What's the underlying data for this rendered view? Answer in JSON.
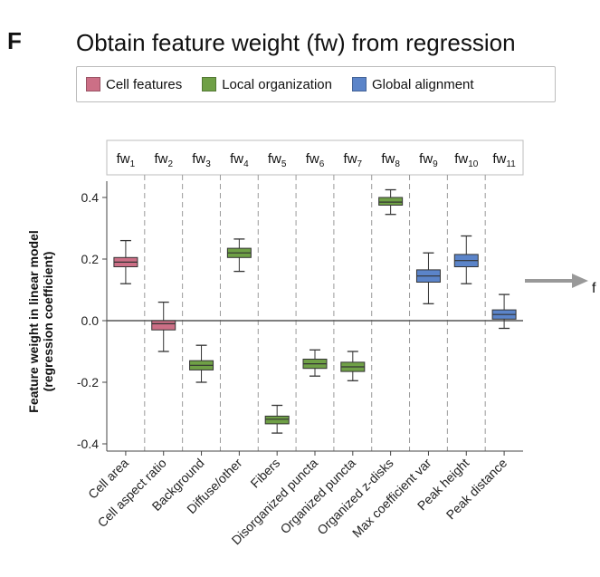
{
  "panel_letter": "F",
  "header_text": "f",
  "chart_data": {
    "type": "boxplot",
    "title": "Obtain feature weight (fw) from regression",
    "ylabel_line1": "Feature weight in linear model",
    "ylabel_line2": "(regression coefficient)",
    "ylim": [
      -0.42,
      0.46
    ],
    "yticks": [
      -0.4,
      -0.2,
      0.0,
      0.2,
      0.4
    ],
    "ytick_labels": [
      "-0.4",
      "-0.2",
      "0.0",
      "0.2",
      "0.4"
    ],
    "zero_line": true,
    "groups": [
      {
        "name": "Cell features",
        "color": "#cc6f86"
      },
      {
        "name": "Local organization",
        "color": "#6fa046"
      },
      {
        "name": "Global alignment",
        "color": "#5b84c9"
      }
    ],
    "categories": [
      {
        "label": "Cell area",
        "fw": "fw",
        "sub": "1",
        "group": 0,
        "min": 0.12,
        "q1": 0.175,
        "median": 0.19,
        "q3": 0.205,
        "max": 0.26
      },
      {
        "label": "Cell aspect ratio",
        "fw": "fw",
        "sub": "2",
        "group": 0,
        "min": -0.1,
        "q1": -0.03,
        "median": -0.01,
        "q3": 0.0,
        "max": 0.06
      },
      {
        "label": "Background",
        "fw": "fw",
        "sub": "3",
        "group": 1,
        "min": -0.2,
        "q1": -0.16,
        "median": -0.145,
        "q3": -0.13,
        "max": -0.08
      },
      {
        "label": "Diffuse/other",
        "fw": "fw",
        "sub": "4",
        "group": 1,
        "min": 0.16,
        "q1": 0.205,
        "median": 0.22,
        "q3": 0.235,
        "max": 0.265
      },
      {
        "label": "Fibers",
        "fw": "fw",
        "sub": "5",
        "group": 1,
        "min": -0.365,
        "q1": -0.335,
        "median": -0.32,
        "q3": -0.31,
        "max": -0.275
      },
      {
        "label": "Disorganized puncta",
        "fw": "fw",
        "sub": "6",
        "group": 1,
        "min": -0.18,
        "q1": -0.155,
        "median": -0.14,
        "q3": -0.125,
        "max": -0.095
      },
      {
        "label": "Organized puncta",
        "fw": "fw",
        "sub": "7",
        "group": 1,
        "min": -0.195,
        "q1": -0.165,
        "median": -0.15,
        "q3": -0.135,
        "max": -0.1
      },
      {
        "label": "Organized z-disks",
        "fw": "fw",
        "sub": "8",
        "group": 1,
        "min": 0.345,
        "q1": 0.375,
        "median": 0.385,
        "q3": 0.4,
        "max": 0.425
      },
      {
        "label": "Max coefficient var",
        "fw": "fw",
        "sub": "9",
        "group": 2,
        "min": 0.055,
        "q1": 0.125,
        "median": 0.145,
        "q3": 0.165,
        "max": 0.22
      },
      {
        "label": "Peak height",
        "fw": "fw",
        "sub": "10",
        "group": 2,
        "min": 0.12,
        "q1": 0.175,
        "median": 0.195,
        "q3": 0.215,
        "max": 0.275
      },
      {
        "label": "Peak distance",
        "fw": "fw",
        "sub": "11",
        "group": 2,
        "min": -0.025,
        "q1": 0.005,
        "median": 0.02,
        "q3": 0.035,
        "max": 0.085
      }
    ]
  }
}
